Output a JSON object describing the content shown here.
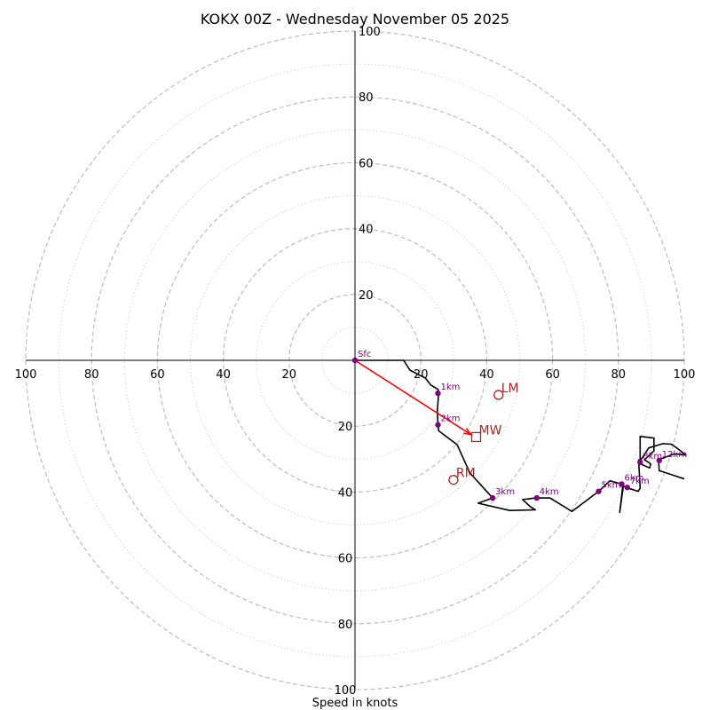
{
  "chart_data": {
    "type": "hodograph",
    "title": "KOKX 00Z - Wednesday November 05 2025",
    "xlabel": "Speed in knots",
    "units": "knots",
    "max_speed": 100,
    "ring_major": [
      20,
      40,
      60,
      80,
      100
    ],
    "ring_minor": [
      10,
      30,
      50,
      70,
      90
    ],
    "tick_labels": {
      "top": [
        "20",
        "40",
        "60",
        "80",
        "100"
      ],
      "bottom": [
        "20",
        "40",
        "60",
        "80",
        "100"
      ],
      "left": [
        "20",
        "40",
        "60",
        "80",
        "100"
      ],
      "right": [
        "20",
        "40",
        "60",
        "80",
        "100"
      ]
    },
    "trace": [
      [
        0,
        0
      ],
      [
        14.8,
        0
      ],
      [
        16.7,
        -3.0
      ],
      [
        21.4,
        -5.4
      ],
      [
        23.0,
        -7.5
      ],
      [
        25.2,
        -8.8
      ],
      [
        25.4,
        -10.0
      ],
      [
        25.0,
        -15.3
      ],
      [
        25.2,
        -19.6
      ],
      [
        25.4,
        -21.4
      ],
      [
        31.0,
        -25.6
      ],
      [
        34.9,
        -34.2
      ],
      [
        41.8,
        -41.8
      ],
      [
        37.4,
        -43.4
      ],
      [
        47.0,
        -45.6
      ],
      [
        54.8,
        -45.4
      ],
      [
        53.3,
        -44.5
      ],
      [
        50.9,
        -42.3
      ],
      [
        54.8,
        -41.8
      ],
      [
        59.2,
        -41.8
      ],
      [
        65.9,
        -45.9
      ],
      [
        74.0,
        -39.8
      ],
      [
        77.4,
        -36.6
      ],
      [
        80.4,
        -37.4
      ],
      [
        81.3,
        -38.4
      ],
      [
        80.4,
        -46.2
      ],
      [
        81.5,
        -38.2
      ],
      [
        82.9,
        -38.8
      ],
      [
        86.0,
        -39.8
      ],
      [
        86.6,
        -38.8
      ],
      [
        86.2,
        -31.5
      ],
      [
        86.2,
        -30.2
      ],
      [
        86.8,
        -31.5
      ],
      [
        89.5,
        -32.7
      ],
      [
        89.8,
        -31.5
      ],
      [
        89.2,
        -31.0
      ],
      [
        87.9,
        -30.2
      ],
      [
        90.8,
        -27.5
      ],
      [
        90.8,
        -23.6
      ],
      [
        86.6,
        -23.1
      ],
      [
        86.6,
        -30.6
      ],
      [
        89.2,
        -26.6
      ],
      [
        93.5,
        -25.3
      ],
      [
        96.2,
        -25.5
      ],
      [
        98.5,
        -27.2
      ],
      [
        100.5,
        -28.8
      ],
      [
        97.0,
        -28.4
      ],
      [
        92.2,
        -30.2
      ],
      [
        92.4,
        -33.5
      ],
      [
        100.0,
        -36.0
      ]
    ],
    "height_markers": [
      {
        "label": "Sfc",
        "u": 0,
        "v": 0
      },
      {
        "label": "1km",
        "u": 25.2,
        "v": -10.0
      },
      {
        "label": "2km",
        "u": 25.2,
        "v": -19.6
      },
      {
        "label": "3km",
        "u": 41.8,
        "v": -41.8
      },
      {
        "label": "4km",
        "u": 55.2,
        "v": -41.8
      },
      {
        "label": "5km",
        "u": 74.0,
        "v": -39.8
      },
      {
        "label": "6km",
        "u": 81.0,
        "v": -37.6
      },
      {
        "label": "7km",
        "u": 82.7,
        "v": -38.6
      },
      {
        "label": "8km",
        "u": 86.6,
        "v": -31.0
      },
      {
        "label": "12km",
        "u": 92.4,
        "v": -30.4
      }
    ],
    "storm_points": [
      {
        "label": "LM",
        "marker": "circle",
        "u": 43.6,
        "v": -10.5
      },
      {
        "label": "MW",
        "marker": "square",
        "u": 36.8,
        "v": -23.3
      },
      {
        "label": "RM",
        "marker": "circle",
        "u": 29.9,
        "v": -36.3
      }
    ],
    "mean_wind_vector": {
      "from": [
        0,
        0
      ],
      "to": [
        35.3,
        -22.6
      ]
    },
    "colors": {
      "grid": "#bdbdbd",
      "trace": "#000000",
      "markers": "#800080",
      "storm": "#b22222",
      "vector": "#ff0000"
    }
  }
}
